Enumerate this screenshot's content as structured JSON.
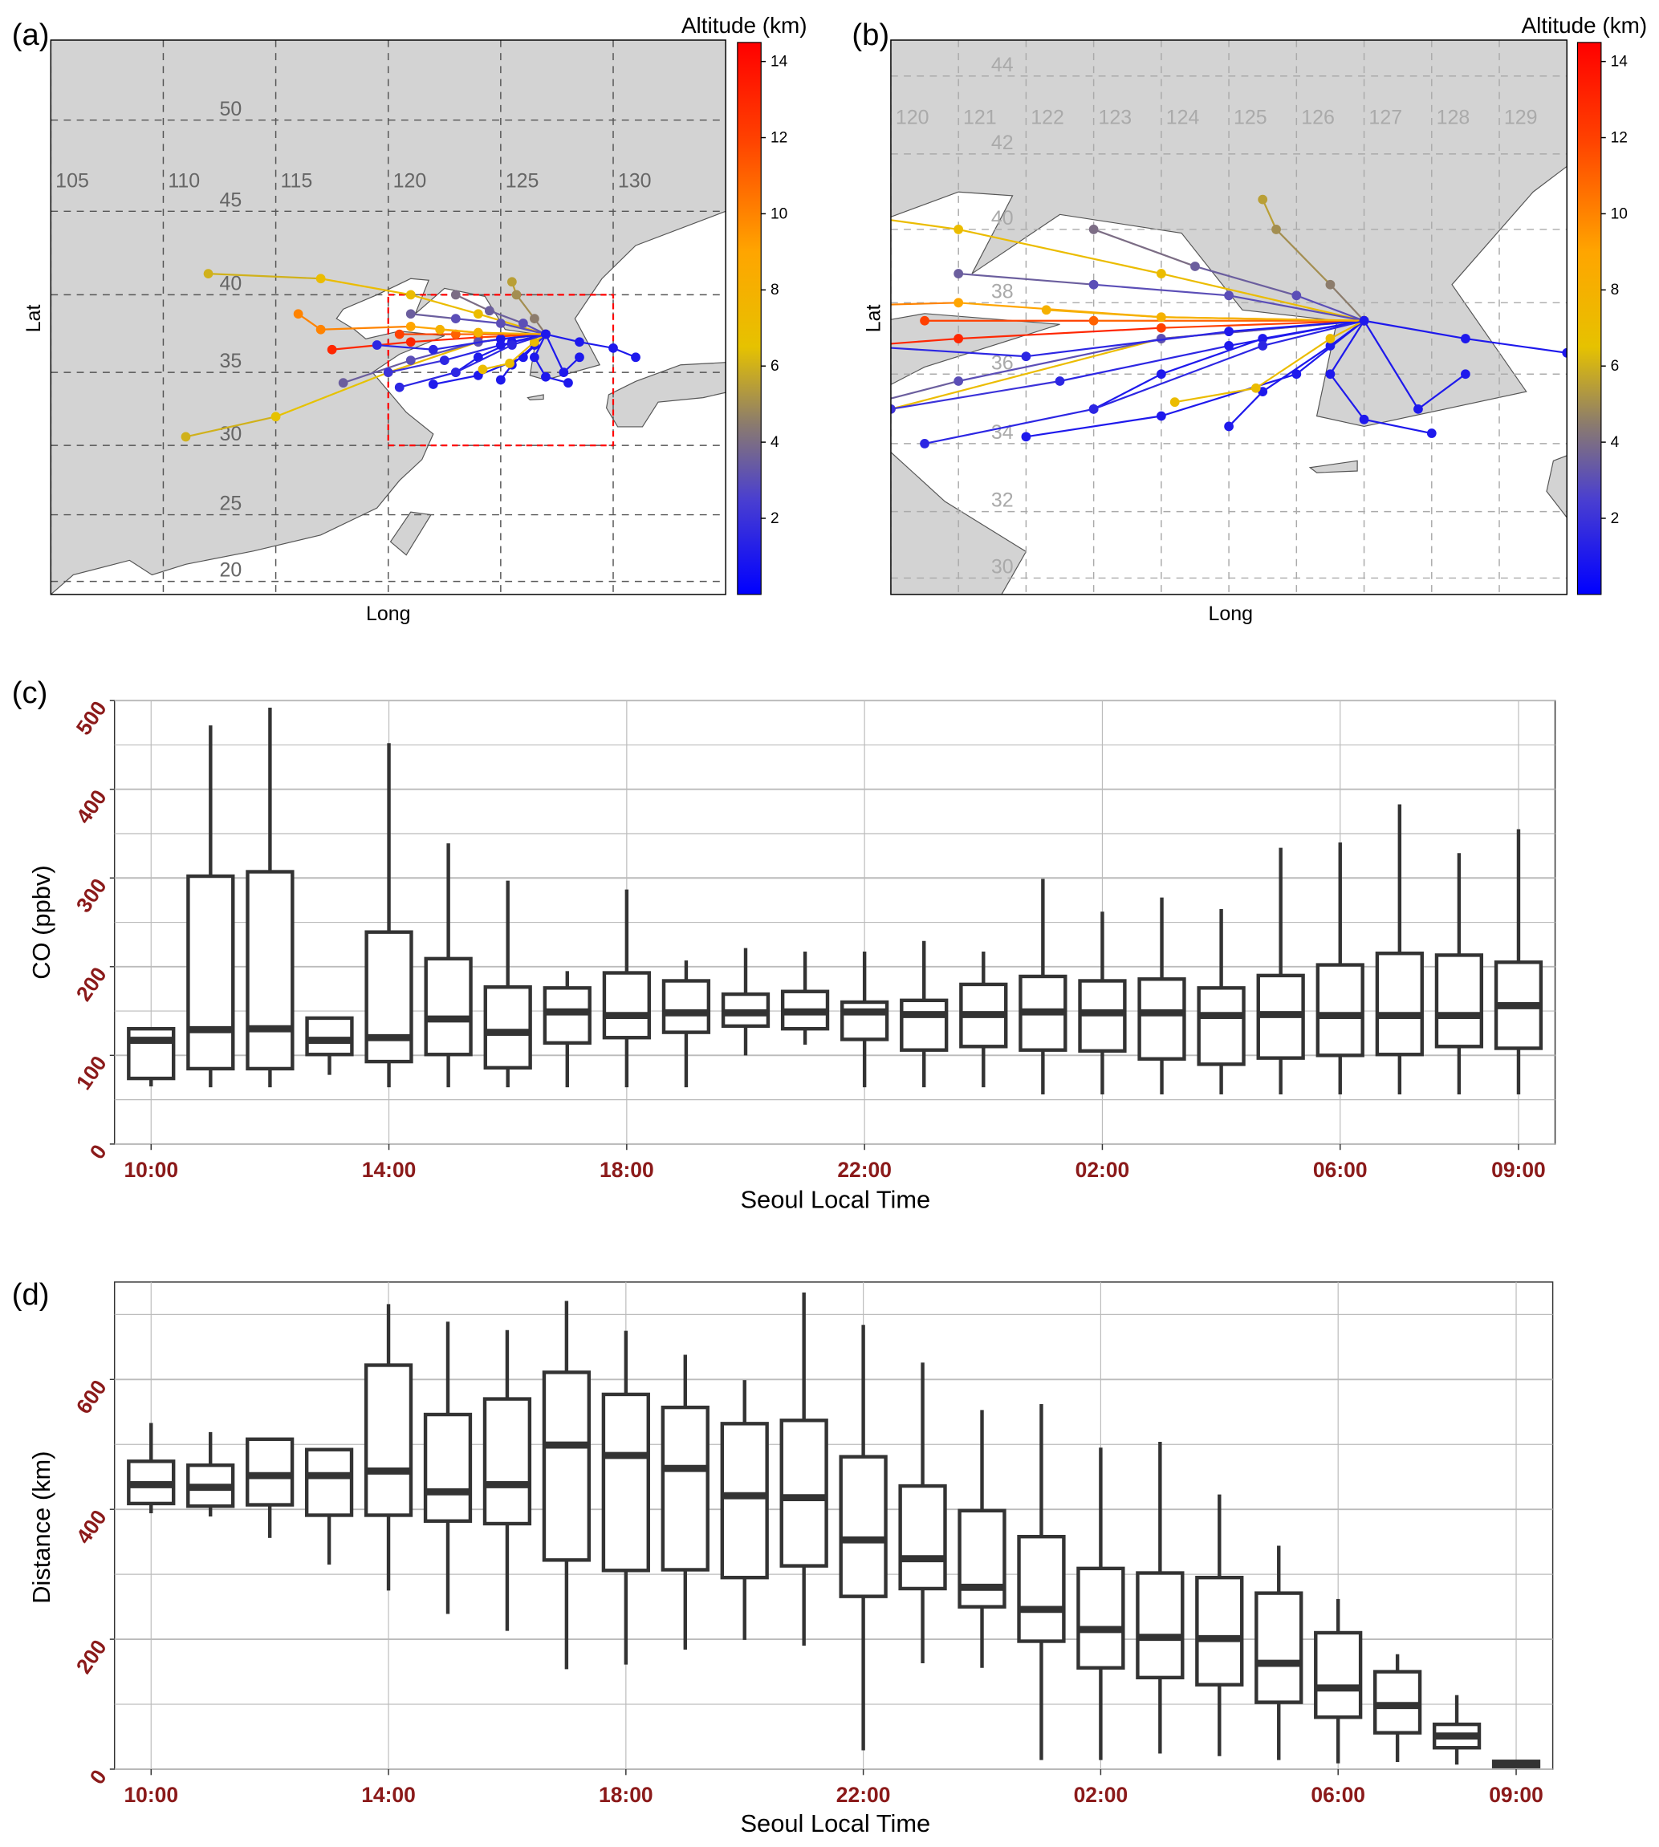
{
  "panel_labels": {
    "a": "(a)",
    "b": "(b)",
    "c": "(c)",
    "d": "(d)"
  },
  "colors": {
    "tick_label": "#8b1a1a",
    "box": "#333333",
    "land": "#d3d3d3",
    "sea": "#ffffff",
    "box_region": "#ff0000"
  },
  "maps": [
    {
      "id": "a",
      "xlabel": "Long",
      "ylabel": "Lat",
      "lon_range": [
        105,
        135
      ],
      "lat_range": [
        19,
        54
      ],
      "lon_ticks": [
        105,
        110,
        115,
        120,
        125,
        130
      ],
      "lat_ticks": [
        20,
        25,
        30,
        35,
        40,
        45,
        50
      ],
      "highlight_box": {
        "lon": [
          120,
          130
        ],
        "lat": [
          30,
          40
        ]
      }
    },
    {
      "id": "b",
      "xlabel": "Long",
      "ylabel": "Lat",
      "lon_range": [
        120,
        130
      ],
      "lat_range": [
        29.5,
        44.9
      ],
      "lon_ticks": [
        120,
        121,
        122,
        123,
        124,
        125,
        126,
        127,
        128,
        129
      ],
      "lat_ticks": [
        30,
        32,
        34,
        36,
        38,
        40,
        42,
        44
      ]
    }
  ],
  "colorbar": {
    "title": "Altitude (km)",
    "range": [
      0,
      14.5
    ],
    "ticks": [
      "2",
      "4",
      "6",
      "8",
      "10",
      "12",
      "14"
    ],
    "stops": [
      [
        0,
        "#0000ff"
      ],
      [
        2.5,
        "#4a3fd0"
      ],
      [
        4.5,
        "#8c7c6c"
      ],
      [
        6.5,
        "#e6c200"
      ],
      [
        9,
        "#ffa500"
      ],
      [
        12,
        "#ff4000"
      ],
      [
        14.5,
        "#ff0000"
      ]
    ]
  },
  "trajectories": [
    [
      [
        112,
        41.3,
        6
      ],
      [
        117,
        41,
        7
      ],
      [
        121,
        40,
        7
      ],
      [
        124,
        38.8,
        7
      ],
      [
        127,
        37.5,
        7
      ]
    ],
    [
      [
        111,
        30.6,
        6
      ],
      [
        115,
        32,
        6.5
      ],
      [
        120,
        35,
        7
      ],
      [
        124,
        37,
        7
      ],
      [
        127,
        37.5,
        7
      ]
    ],
    [
      [
        117.5,
        36.5,
        13
      ],
      [
        121,
        37,
        13
      ],
      [
        124,
        37.3,
        12
      ],
      [
        127,
        37.5,
        12
      ]
    ],
    [
      [
        116,
        38.8,
        10
      ],
      [
        117,
        37.8,
        10
      ],
      [
        121,
        38,
        9
      ],
      [
        124,
        37.6,
        9
      ],
      [
        127,
        37.5,
        9
      ]
    ],
    [
      [
        118,
        34.3,
        3.5
      ],
      [
        121,
        35.8,
        3
      ],
      [
        124,
        37,
        3
      ],
      [
        127,
        37.5,
        3
      ]
    ],
    [
      [
        121,
        38.8,
        3.5
      ],
      [
        123,
        38.5,
        3
      ],
      [
        125,
        38.2,
        3
      ],
      [
        127,
        37.5,
        2
      ]
    ],
    [
      [
        123,
        40,
        4
      ],
      [
        124.5,
        39,
        3.5
      ],
      [
        126,
        38.2,
        3
      ],
      [
        127,
        37.5,
        3
      ]
    ],
    [
      [
        125.5,
        40.8,
        5.5
      ],
      [
        125.7,
        40,
        5
      ],
      [
        126.5,
        38.5,
        4.5
      ],
      [
        127,
        37.5,
        4
      ]
    ],
    [
      [
        131,
        36,
        1
      ],
      [
        130,
        36.6,
        1
      ],
      [
        128.5,
        37,
        1
      ],
      [
        127,
        37.5,
        1
      ]
    ],
    [
      [
        128,
        34.3,
        1
      ],
      [
        127,
        34.7,
        1
      ],
      [
        126.5,
        36,
        1
      ],
      [
        127,
        37.5,
        1
      ]
    ],
    [
      [
        123,
        35,
        1
      ],
      [
        124,
        36,
        1
      ],
      [
        125.5,
        37,
        1
      ],
      [
        127,
        37.5,
        1
      ]
    ],
    [
      [
        119.5,
        36.8,
        1.5
      ],
      [
        122,
        36.5,
        1.5
      ],
      [
        125,
        37.2,
        1
      ],
      [
        127,
        37.5,
        1
      ]
    ],
    [
      [
        120,
        35,
        2
      ],
      [
        122.5,
        35.8,
        1.5
      ],
      [
        125,
        36.8,
        1
      ],
      [
        127,
        37.5,
        1
      ]
    ],
    [
      [
        120.5,
        37.5,
        12
      ],
      [
        123,
        37.5,
        11
      ],
      [
        127,
        37.5,
        11
      ]
    ],
    [
      [
        122,
        34.2,
        1
      ],
      [
        124,
        34.8,
        1
      ],
      [
        126,
        36,
        1
      ],
      [
        127,
        37.5,
        1
      ]
    ],
    [
      [
        125,
        34.5,
        1
      ],
      [
        125.5,
        35.5,
        1
      ],
      [
        126.5,
        36.8,
        1
      ],
      [
        127,
        37.5,
        1
      ]
    ],
    [
      [
        124.2,
        35.2,
        7
      ],
      [
        125.4,
        35.6,
        7
      ],
      [
        126.5,
        37,
        7
      ],
      [
        127,
        37.5,
        7
      ]
    ],
    [
      [
        122.3,
        37.8,
        8
      ],
      [
        124,
        37.6,
        8
      ],
      [
        127,
        37.5,
        8
      ]
    ],
    [
      [
        128.5,
        36,
        1
      ],
      [
        127.8,
        35,
        1
      ],
      [
        127,
        37.5,
        1
      ]
    ],
    [
      [
        120.5,
        34,
        1.5
      ],
      [
        123,
        35,
        1.5
      ],
      [
        125.5,
        36.8,
        1.5
      ],
      [
        127,
        37.5,
        1
      ]
    ]
  ],
  "chart_data": [
    {
      "id": "c",
      "type": "box",
      "xlabel": "Seoul Local Time",
      "ylabel": "CO (ppbv)",
      "ylim": [
        0,
        500
      ],
      "yticks": [
        "0",
        "100",
        "200",
        "300",
        "400",
        "500"
      ],
      "grid": true,
      "categories": [
        "10:00",
        "11:00",
        "12:00",
        "13:00",
        "14:00",
        "15:00",
        "16:00",
        "17:00",
        "18:00",
        "19:00",
        "20:00",
        "21:00",
        "22:00",
        "23:00",
        "00:00",
        "01:00",
        "02:00",
        "03:00",
        "04:00",
        "05:00",
        "06:00",
        "07:00",
        "08:00",
        "09:00"
      ],
      "xtick_labels": [
        "10:00",
        "14:00",
        "18:00",
        "22:00",
        "02:00",
        "06:00",
        "09:00"
      ],
      "boxes": [
        [
          65,
          74,
          117,
          130,
          130
        ],
        [
          64,
          85,
          129,
          302,
          472
        ],
        [
          64,
          85,
          130,
          307,
          492
        ],
        [
          78,
          101,
          117,
          142,
          142
        ],
        [
          64,
          93,
          120,
          239,
          452
        ],
        [
          64,
          101,
          141,
          209,
          339
        ],
        [
          64,
          86,
          126,
          177,
          297
        ],
        [
          64,
          114,
          149,
          176,
          195
        ],
        [
          64,
          120,
          145,
          193,
          287
        ],
        [
          64,
          126,
          148,
          184,
          207
        ],
        [
          100,
          133,
          148,
          169,
          221
        ],
        [
          112,
          130,
          149,
          172,
          217
        ],
        [
          64,
          118,
          149,
          160,
          217
        ],
        [
          64,
          106,
          146,
          162,
          229
        ],
        [
          64,
          110,
          146,
          180,
          217
        ],
        [
          56,
          106,
          149,
          189,
          299
        ],
        [
          56,
          105,
          148,
          184,
          262
        ],
        [
          56,
          96,
          148,
          186,
          278
        ],
        [
          56,
          90,
          145,
          176,
          265
        ],
        [
          56,
          97,
          146,
          190,
          334
        ],
        [
          56,
          100,
          145,
          202,
          340
        ],
        [
          56,
          101,
          145,
          215,
          383
        ],
        [
          56,
          110,
          145,
          213,
          328
        ],
        [
          56,
          108,
          156,
          205,
          355
        ]
      ]
    },
    {
      "id": "d",
      "type": "box",
      "xlabel": "Seoul Local Time",
      "ylabel": "Distance (km)",
      "ylim": [
        0,
        750
      ],
      "yticks": [
        "0",
        "200",
        "400",
        "600"
      ],
      "grid": true,
      "categories": [
        "10:00",
        "11:00",
        "12:00",
        "13:00",
        "14:00",
        "15:00",
        "16:00",
        "17:00",
        "18:00",
        "19:00",
        "20:00",
        "21:00",
        "22:00",
        "23:00",
        "00:00",
        "01:00",
        "02:00",
        "03:00",
        "04:00",
        "05:00",
        "06:00",
        "07:00",
        "08:00",
        "09:00"
      ],
      "xtick_labels": [
        "10:00",
        "14:00",
        "18:00",
        "22:00",
        "02:00",
        "06:00",
        "09:00"
      ],
      "boxes": [
        [
          394,
          409,
          438,
          474,
          533
        ],
        [
          389,
          405,
          434,
          468,
          519
        ],
        [
          356,
          407,
          452,
          508,
          508
        ],
        [
          315,
          391,
          452,
          492,
          492
        ],
        [
          275,
          391,
          459,
          622,
          716
        ],
        [
          239,
          382,
          427,
          546,
          689
        ],
        [
          213,
          378,
          438,
          570,
          676
        ],
        [
          154,
          322,
          499,
          611,
          721
        ],
        [
          161,
          306,
          483,
          577,
          675
        ],
        [
          184,
          307,
          463,
          557,
          638
        ],
        [
          199,
          295,
          421,
          532,
          599
        ],
        [
          190,
          313,
          418,
          537,
          734
        ],
        [
          29,
          266,
          353,
          481,
          684
        ],
        [
          163,
          278,
          324,
          436,
          626
        ],
        [
          156,
          250,
          280,
          398,
          553
        ],
        [
          14,
          197,
          246,
          358,
          562
        ],
        [
          14,
          156,
          215,
          309,
          495
        ],
        [
          24,
          141,
          203,
          302,
          504
        ],
        [
          20,
          130,
          201,
          295,
          423
        ],
        [
          14,
          103,
          163,
          271,
          344
        ],
        [
          9,
          80,
          125,
          210,
          262
        ],
        [
          11,
          56,
          98,
          150,
          177
        ],
        [
          7,
          33,
          51,
          69,
          114
        ],
        [
          2,
          4,
          8,
          12,
          12
        ]
      ]
    }
  ]
}
